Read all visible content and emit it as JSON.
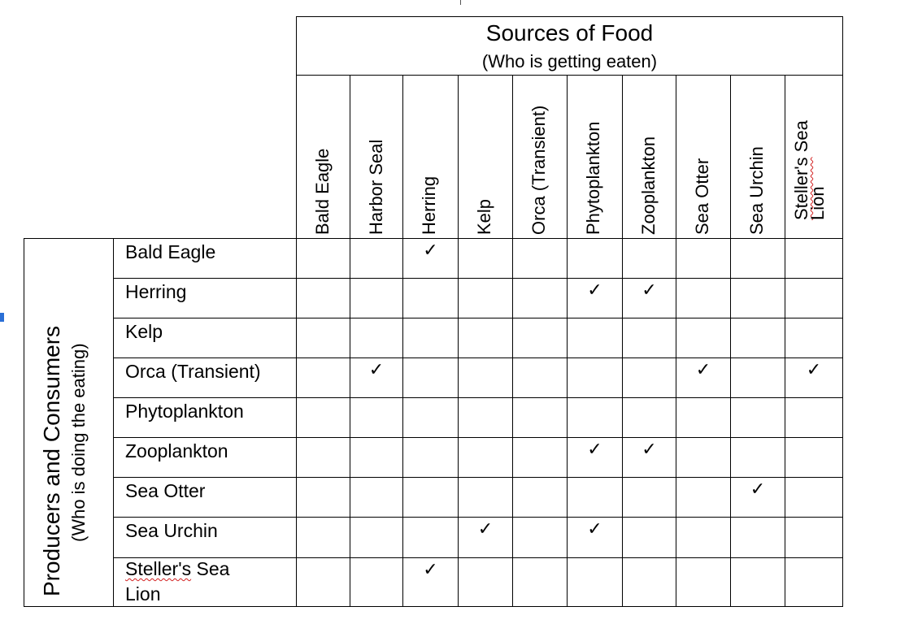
{
  "table": {
    "header_title": "Sources of Food",
    "header_subtitle": "(Who is getting eaten)",
    "side_title": "Producers and Consumers",
    "side_subtitle": "(Who is doing the eating)",
    "columns": [
      "Bald Eagle",
      "Harbor Seal",
      "Herring",
      "Kelp",
      "Orca (Transient)",
      "Phytoplankton",
      "Zooplankton",
      "Sea Otter",
      "Sea Urchin",
      "Steller's Sea Lion"
    ],
    "rows": [
      {
        "label": "Bald Eagle",
        "checks": [
          2
        ]
      },
      {
        "label": "Herring",
        "checks": [
          5,
          6
        ]
      },
      {
        "label": "Kelp",
        "checks": []
      },
      {
        "label": "Orca (Transient)",
        "checks": [
          1,
          7,
          9
        ]
      },
      {
        "label": "Phytoplankton",
        "checks": []
      },
      {
        "label": "Zooplankton",
        "checks": [
          5,
          6
        ]
      },
      {
        "label": "Sea Otter",
        "checks": [
          8
        ]
      },
      {
        "label": "Sea Urchin",
        "checks": [
          3,
          5
        ]
      },
      {
        "label": "Steller's Sea Lion",
        "checks": [
          2
        ]
      }
    ],
    "check_symbol": "✓"
  }
}
